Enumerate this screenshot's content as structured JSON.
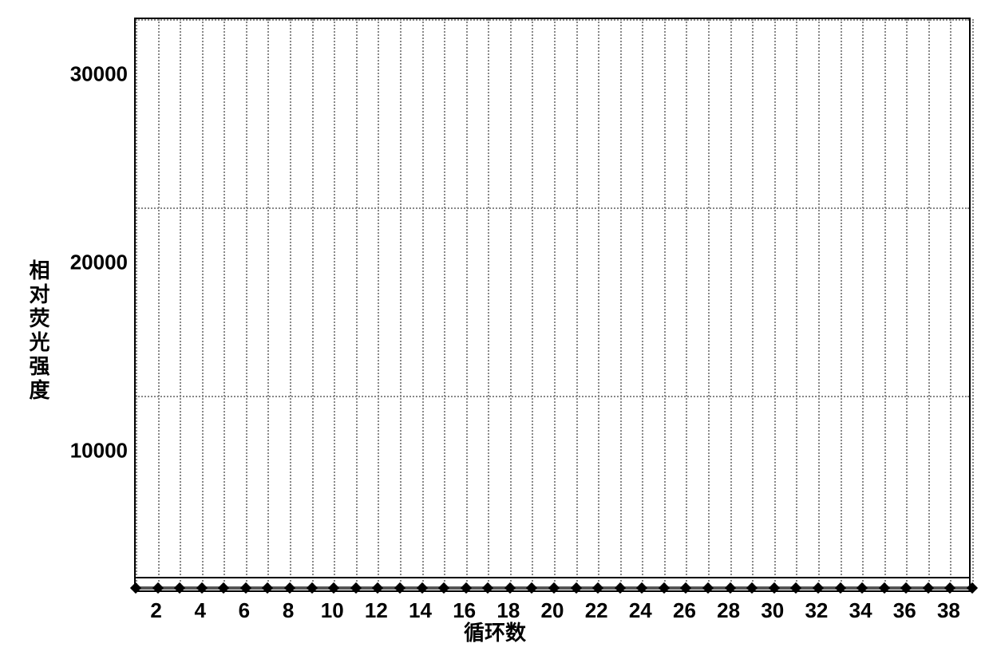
{
  "chart": {
    "type": "line",
    "y_axis_label": "相对荧光强度",
    "x_axis_label": "循环数",
    "background_color": "#ffffff",
    "border_color": "#000000",
    "grid_color": "#888888",
    "grid_style": "dotted",
    "label_fontsize": 26,
    "tick_fontsize": 26,
    "text_color": "#000000",
    "ylim": [
      2500,
      33000
    ],
    "xlim": [
      1,
      39
    ],
    "y_ticks": [
      10000,
      20000,
      30000
    ],
    "y_gridlines": [
      13000,
      23000,
      33000
    ],
    "x_ticks": [
      2,
      4,
      6,
      8,
      10,
      12,
      14,
      16,
      18,
      20,
      22,
      24,
      26,
      28,
      30,
      32,
      34,
      36,
      38
    ],
    "x_gridlines": [
      1,
      2,
      3,
      4,
      5,
      6,
      7,
      8,
      9,
      10,
      11,
      12,
      13,
      14,
      15,
      16,
      17,
      18,
      19,
      20,
      21,
      22,
      23,
      24,
      25,
      26,
      27,
      28,
      29,
      30,
      31,
      32,
      33,
      34,
      35,
      36,
      37,
      38,
      39
    ],
    "threshold_line": {
      "y": 3400,
      "color": "#000000",
      "width": 2
    },
    "series": {
      "color": "#555555",
      "marker": "diamond",
      "marker_size": 10,
      "marker_color": "#000000",
      "line_width": 4,
      "x": [
        1,
        2,
        3,
        4,
        5,
        6,
        7,
        8,
        9,
        10,
        11,
        12,
        13,
        14,
        15,
        16,
        17,
        18,
        19,
        20,
        21,
        22,
        23,
        24,
        25,
        26,
        27,
        28,
        29,
        30,
        31,
        32,
        33,
        34,
        35,
        36,
        37,
        38,
        39
      ],
      "y": [
        2800,
        2800,
        2800,
        2800,
        2800,
        2800,
        2800,
        2800,
        2800,
        2800,
        2800,
        2800,
        2800,
        2800,
        2800,
        2800,
        2800,
        2800,
        2800,
        2800,
        2800,
        2800,
        2800,
        2800,
        2800,
        2800,
        2800,
        2800,
        2800,
        2800,
        2800,
        2800,
        2800,
        2800,
        2800,
        2800,
        2800,
        2800,
        2800
      ]
    }
  }
}
